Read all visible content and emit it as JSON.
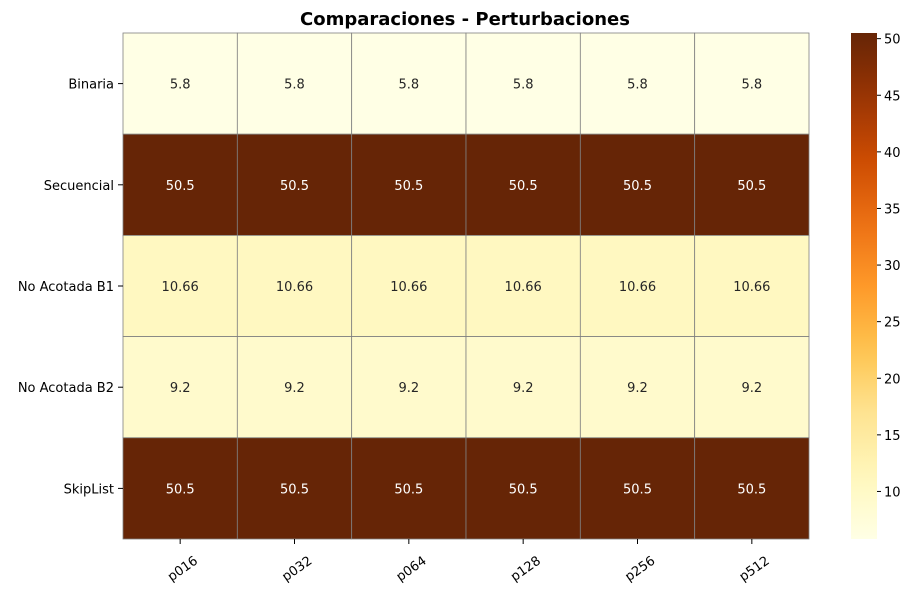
{
  "chart_data": {
    "type": "heatmap",
    "title": "Comparaciones - Perturbaciones",
    "xlabel": "",
    "ylabel": "",
    "x_categories": [
      "p016",
      "p032",
      "p064",
      "p128",
      "p256",
      "p512"
    ],
    "y_categories": [
      "Binaria",
      "Secuencial",
      "No Acotada B1",
      "No Acotada B2",
      "SkipList"
    ],
    "values": [
      [
        5.8,
        5.8,
        5.8,
        5.8,
        5.8,
        5.8
      ],
      [
        50.5,
        50.5,
        50.5,
        50.5,
        50.5,
        50.5
      ],
      [
        10.66,
        10.66,
        10.66,
        10.66,
        10.66,
        10.66
      ],
      [
        9.2,
        9.2,
        9.2,
        9.2,
        9.2,
        9.2
      ],
      [
        50.5,
        50.5,
        50.5,
        50.5,
        50.5,
        50.5
      ]
    ],
    "cell_labels": [
      [
        "5.8",
        "5.8",
        "5.8",
        "5.8",
        "5.8",
        "5.8"
      ],
      [
        "50.5",
        "50.5",
        "50.5",
        "50.5",
        "50.5",
        "50.5"
      ],
      [
        "10.66",
        "10.66",
        "10.66",
        "10.66",
        "10.66",
        "10.66"
      ],
      [
        "9.2",
        "9.2",
        "9.2",
        "9.2",
        "9.2",
        "9.2"
      ],
      [
        "50.5",
        "50.5",
        "50.5",
        "50.5",
        "50.5",
        "50.5"
      ]
    ],
    "colorscale": "YlOrBr",
    "color_range": [
      5.8,
      50.5
    ],
    "colorbar_ticks": [
      10,
      15,
      20,
      25,
      30,
      35,
      40,
      45,
      50
    ],
    "grid_color": "#808080",
    "x_tick_rotation_deg": 35
  }
}
